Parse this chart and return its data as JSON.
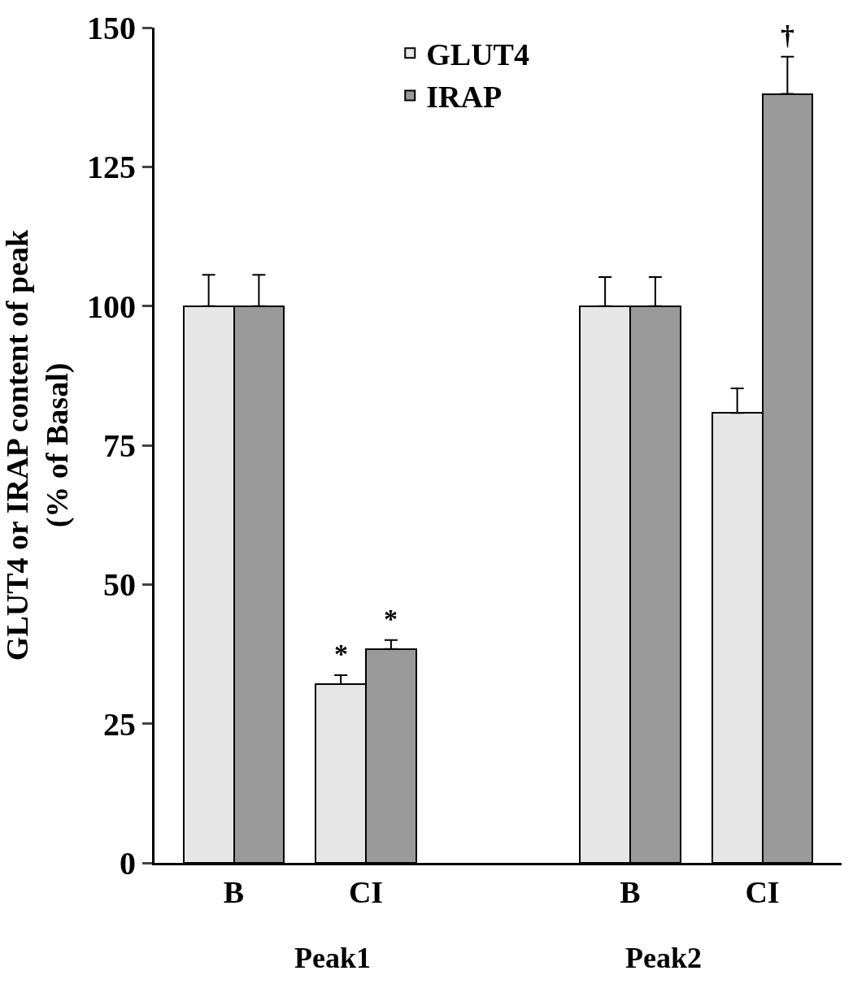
{
  "chart_data": {
    "type": "bar",
    "ylabel": "GLUT4 or IRAP content of peak\n(% of Basal)",
    "categories": [
      "B",
      "CI",
      null,
      "B",
      "CI"
    ],
    "series": [
      {
        "name": "GLUT4",
        "color": "#e6e6e6",
        "values": [
          100,
          32.1,
          null,
          100,
          80.8
        ],
        "errors": [
          [
            100,
            105.6
          ],
          [
            32.1,
            33.7
          ],
          null,
          [
            100,
            105.2
          ],
          [
            80.8,
            85.2
          ]
        ]
      },
      {
        "name": "IRAP",
        "color": "#9a9a9a",
        "values": [
          100,
          38.4,
          null,
          100,
          138.1
        ],
        "errors": [
          [
            100,
            105.6
          ],
          [
            38.4,
            40.0
          ],
          null,
          [
            100,
            105.2
          ],
          [
            138.1,
            144.8
          ]
        ]
      }
    ],
    "annotations": [
      {
        "text": "*",
        "y": 33.7
      },
      {
        "text": "*",
        "y": 40.0
      },
      {
        "text": "†",
        "y": 144.8
      },
      "Peak1",
      "Peak2"
    ],
    "ylim": [
      0,
      150
    ],
    "yticks": [
      0,
      25,
      50,
      75,
      100,
      125,
      150
    ],
    "legend": "top"
  }
}
